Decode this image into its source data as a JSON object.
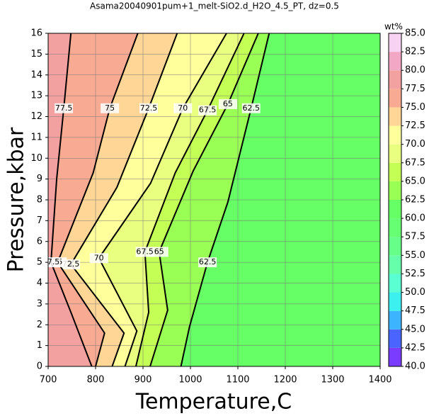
{
  "chart_data": {
    "type": "contour",
    "title": "Asama20040901pum+1_melt-SiO2.d_H2O_4.5_PT, dz=0.5",
    "xlabel": "Temperature,C",
    "ylabel": "Pressure,kbar",
    "xlim": [
      700,
      1400
    ],
    "ylim": [
      0,
      16
    ],
    "xticks": [
      700,
      800,
      900,
      1000,
      1100,
      1200,
      1300,
      1400
    ],
    "yticks": [
      0,
      1,
      2,
      3,
      4,
      5,
      6,
      7,
      8,
      9,
      10,
      11,
      12,
      13,
      14,
      15,
      16
    ],
    "grid": true,
    "contours": [
      {
        "level": 62.5,
        "x": [
          1166,
          1128,
          1079,
          1036,
          998,
          980
        ],
        "y": [
          16,
          12.4,
          7.9,
          5.0,
          1.9,
          0
        ]
      },
      {
        "level": 65,
        "x": [
          1143,
          1079,
          1006,
          934,
          952,
          915
        ],
        "y": [
          16,
          12.6,
          9.4,
          5.5,
          2.7,
          0
        ]
      },
      {
        "level": 67.5,
        "x": [
          1113,
          1036,
          968,
          904,
          912,
          885
        ],
        "y": [
          16,
          12.3,
          9.3,
          5.5,
          2.6,
          0
        ]
      },
      {
        "level": 70,
        "x": [
          1076,
          984,
          916,
          807,
          887,
          862
        ],
        "y": [
          16,
          12.4,
          8.8,
          5.2,
          1.7,
          0
        ]
      },
      {
        "level": 72.5,
        "x": [
          972,
          912,
          845,
          748,
          860,
          835
        ],
        "y": [
          16,
          12.4,
          8.6,
          4.9,
          1.6,
          0
        ]
      },
      {
        "level": 75,
        "x": [
          889,
          830,
          795,
          720,
          819,
          800
        ],
        "y": [
          16,
          12.4,
          9.3,
          5.0,
          1.6,
          0
        ]
      },
      {
        "level": 77.5,
        "x": [
          748,
          733,
          718,
          706,
          748,
          792
        ],
        "y": [
          16,
          12.4,
          9.0,
          5.0,
          2.6,
          0
        ]
      }
    ],
    "colorbar": {
      "label": "wt%",
      "lim": [
        40,
        85
      ],
      "colors": [
        "#7a3cff",
        "#4a64ff",
        "#3cb4ff",
        "#3cf0f0",
        "#5affd2",
        "#66ffaa",
        "#66ff88",
        "#66ff74",
        "#66ff66",
        "#99ff55",
        "#c4ff55",
        "#e8ff80",
        "#ffff9c",
        "#ffd696",
        "#f8aa92",
        "#f2a0a0",
        "#f2a8c4",
        "#f8d2f2"
      ],
      "ticks": [
        {
          "value": 40,
          "label": "40.0"
        },
        {
          "value": 42.5,
          "label": "42.5"
        },
        {
          "value": 45,
          "label": "45.0"
        },
        {
          "value": 47.5,
          "label": "47.5"
        },
        {
          "value": 50,
          "label": "50.0"
        },
        {
          "value": 52.5,
          "label": "52.5"
        },
        {
          "value": 55,
          "label": "55.0"
        },
        {
          "value": 57.5,
          "label": "57.5"
        },
        {
          "value": 60,
          "label": "60.0"
        },
        {
          "value": 62.5,
          "label": "62.5"
        },
        {
          "value": 65,
          "label": "65.0"
        },
        {
          "value": 67.5,
          "label": "67.5"
        },
        {
          "value": 70,
          "label": "70.0"
        },
        {
          "value": 72.5,
          "label": "72.5"
        },
        {
          "value": 75,
          "label": "75.0"
        },
        {
          "value": 77.5,
          "label": "77.5"
        },
        {
          "value": 80,
          "label": "80.0"
        },
        {
          "value": 82.5,
          "label": "82.5"
        },
        {
          "value": 85,
          "label": "85.0"
        }
      ]
    }
  }
}
